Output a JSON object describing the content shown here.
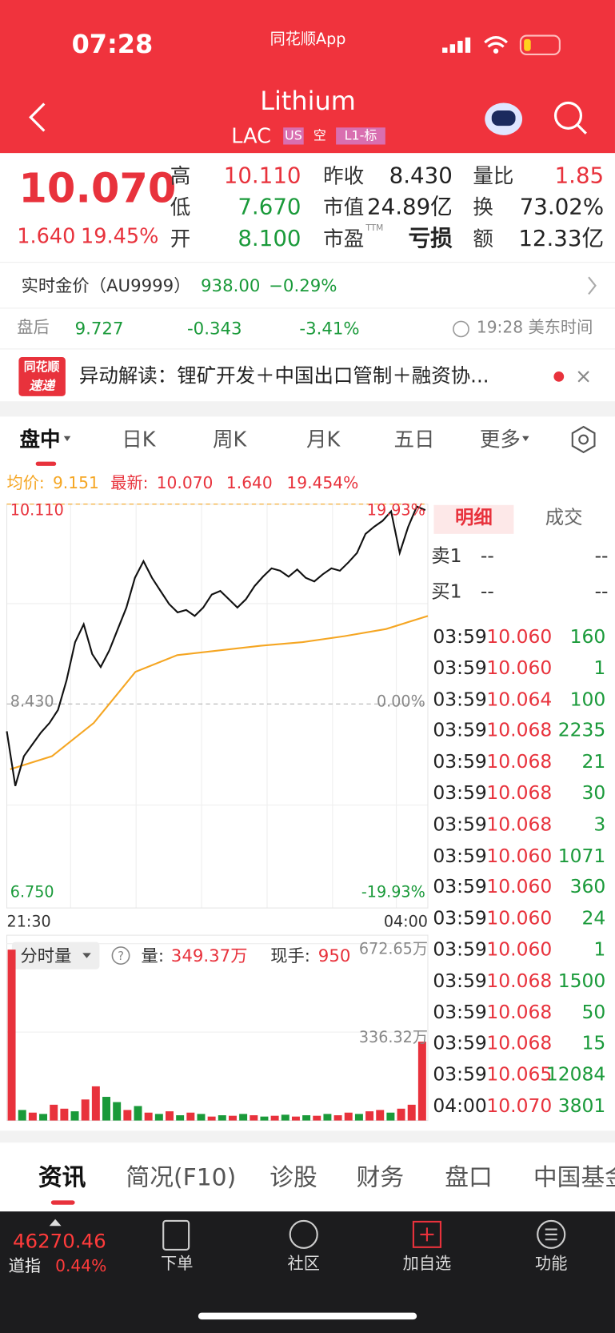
{
  "status": {
    "time": "07:28",
    "app": "同花顺App"
  },
  "header": {
    "title": "Lithium",
    "ticker": "LAC",
    "badges": [
      "US",
      "空",
      "L1-标"
    ]
  },
  "quote": {
    "price": "10.070",
    "change": "1.640",
    "change_pct": "19.45%",
    "stats": [
      {
        "label": "高",
        "value": "10.110",
        "color": "#e8323c"
      },
      {
        "label": "昨收",
        "value": "8.430",
        "color": "#222"
      },
      {
        "label": "量比",
        "value": "1.85",
        "color": "#e8323c"
      },
      {
        "label": "低",
        "value": "7.670",
        "color": "#1a9a3a"
      },
      {
        "label": "市值",
        "value": "24.89亿",
        "color": "#222"
      },
      {
        "label": "换",
        "value": "73.02%",
        "color": "#222"
      },
      {
        "label": "开",
        "value": "8.100",
        "color": "#1a9a3a"
      },
      {
        "label": "市盈",
        "sup": "TTM",
        "value": "亏损",
        "color": "#222"
      },
      {
        "label": "额",
        "value": "12.33亿",
        "color": "#222"
      }
    ]
  },
  "gold": {
    "label": "实时金价（AU9999）",
    "price": "938.00",
    "change": "−0.29%"
  },
  "after_hours": {
    "label": "盘后",
    "price": "9.727",
    "change": "-0.343",
    "change_pct": "-3.41%",
    "time": "19:28 美东时间"
  },
  "news": {
    "badge": [
      "同花顺",
      "速递"
    ],
    "text": "异动解读：锂矿开发＋中国出口管制＋融资协..."
  },
  "tabs": [
    "盘中",
    "日K",
    "周K",
    "月K",
    "五日",
    "更多"
  ],
  "info": {
    "avg_label": "均价:",
    "avg": "9.151",
    "latest_label": "最新:",
    "latest": "10.070",
    "change": "1.640",
    "change_pct": "19.454%"
  },
  "chart_data": {
    "type": "line",
    "ylim": [
      6.75,
      10.11
    ],
    "yticks": [
      {
        "value": 10.11,
        "label": "10.110"
      },
      {
        "value": 8.43,
        "label": "8.430"
      },
      {
        "value": 6.75,
        "label": "6.750"
      }
    ],
    "pct_labels": [
      "19.93%",
      "0.00%",
      "-19.93%"
    ],
    "tick_colors": [
      "#e8323c",
      "#888",
      "#1a9a3a"
    ],
    "x_labels": [
      "21:30",
      "04:00"
    ],
    "price": {
      "color": "#111",
      "values": [
        8.2,
        7.74,
        7.99,
        8.09,
        8.19,
        8.27,
        8.38,
        8.63,
        8.95,
        9.1,
        8.85,
        8.74,
        8.88,
        9.06,
        9.24,
        9.49,
        9.63,
        9.49,
        9.38,
        9.27,
        9.2,
        9.22,
        9.17,
        9.24,
        9.35,
        9.38,
        9.31,
        9.24,
        9.31,
        9.42,
        9.5,
        9.57,
        9.55,
        9.5,
        9.56,
        9.49,
        9.46,
        9.52,
        9.57,
        9.55,
        9.62,
        9.7,
        9.86,
        9.92,
        9.97,
        10.05,
        9.7,
        9.92,
        10.09,
        10.06
      ]
    },
    "average": {
      "color": "#f5a623",
      "values": [
        7.88,
        7.99,
        8.27,
        8.7,
        8.84,
        8.88,
        8.92,
        8.95,
        9.0,
        9.06,
        9.17
      ]
    }
  },
  "volume": {
    "type": "bar",
    "selector": "分时量",
    "help": "?",
    "vol_label": "量:",
    "vol": "349.37万",
    "hand_label": "现手:",
    "hand": "950",
    "ylim": [
      0,
      672.65
    ],
    "yticks": [
      {
        "value": 672.65,
        "label": "672.65万"
      },
      {
        "value": 336.32,
        "label": "336.32万"
      }
    ],
    "values": [
      650,
      40,
      30,
      25,
      60,
      45,
      35,
      80,
      130,
      90,
      70,
      40,
      55,
      30,
      25,
      35,
      20,
      30,
      25,
      15,
      20,
      18,
      25,
      20,
      15,
      18,
      22,
      15,
      20,
      18,
      25,
      20,
      30,
      25,
      35,
      40,
      30,
      45,
      60,
      300
    ],
    "colors": [
      "#e8323c",
      "#1a9a3a",
      "#e8323c",
      "#1a9a3a",
      "#e8323c",
      "#e8323c",
      "#1a9a3a",
      "#e8323c",
      "#e8323c",
      "#1a9a3a",
      "#1a9a3a",
      "#e8323c",
      "#1a9a3a",
      "#e8323c",
      "#1a9a3a",
      "#e8323c",
      "#1a9a3a",
      "#e8323c",
      "#1a9a3a",
      "#e8323c",
      "#1a9a3a",
      "#e8323c",
      "#1a9a3a",
      "#e8323c",
      "#1a9a3a",
      "#e8323c",
      "#1a9a3a",
      "#e8323c",
      "#1a9a3a",
      "#e8323c",
      "#1a9a3a",
      "#e8323c",
      "#e8323c",
      "#1a9a3a",
      "#e8323c",
      "#e8323c",
      "#1a9a3a",
      "#e8323c",
      "#e8323c",
      "#e8323c"
    ]
  },
  "panel": {
    "tabs": [
      "明细",
      "成交"
    ],
    "book": [
      {
        "label": "卖1",
        "price": "--",
        "vol": "--"
      },
      {
        "label": "买1",
        "price": "--",
        "vol": "--"
      }
    ],
    "trades": [
      [
        "03:59",
        "10.060",
        "160"
      ],
      [
        "03:59",
        "10.060",
        "1"
      ],
      [
        "03:59",
        "10.064",
        "100"
      ],
      [
        "03:59",
        "10.068",
        "2235"
      ],
      [
        "03:59",
        "10.068",
        "21"
      ],
      [
        "03:59",
        "10.068",
        "30"
      ],
      [
        "03:59",
        "10.068",
        "3"
      ],
      [
        "03:59",
        "10.060",
        "1071"
      ],
      [
        "03:59",
        "10.060",
        "360"
      ],
      [
        "03:59",
        "10.060",
        "24"
      ],
      [
        "03:59",
        "10.060",
        "1"
      ],
      [
        "03:59",
        "10.068",
        "1500"
      ],
      [
        "03:59",
        "10.068",
        "50"
      ],
      [
        "03:59",
        "10.068",
        "15"
      ],
      [
        "03:59",
        "10.065",
        "12084"
      ],
      [
        "04:00",
        "10.070",
        "3801"
      ]
    ]
  },
  "bottom_tabs": [
    "资讯",
    "简况(F10)",
    "诊股",
    "财务",
    "盘口",
    "中国基金"
  ],
  "nav": {
    "index_value": "46270.46",
    "index_name": "道指",
    "index_pct": "0.44%",
    "items": [
      "下单",
      "社区",
      "加自选",
      "功能"
    ]
  }
}
